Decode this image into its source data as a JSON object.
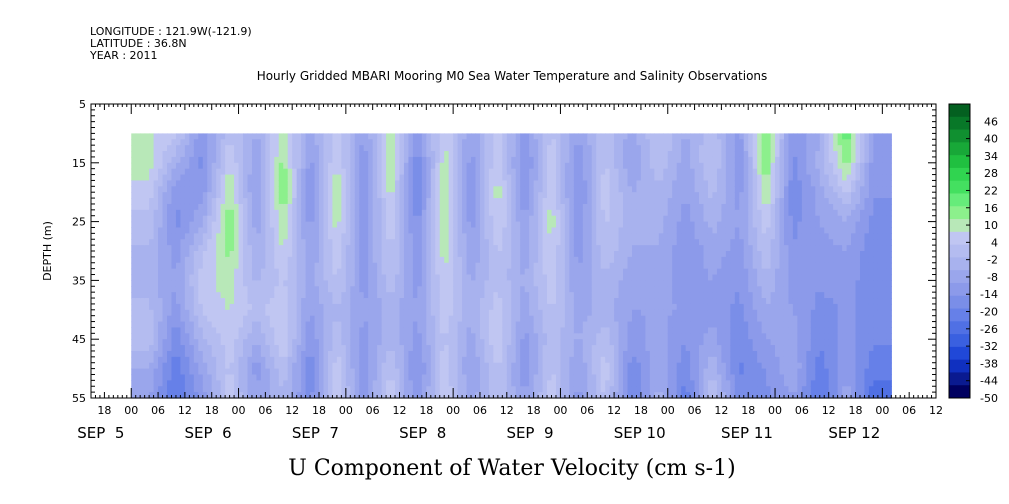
{
  "header": {
    "longitude": "LONGITUDE : 121.9W(-121.9)",
    "latitude": "LATITUDE : 36.8N",
    "year": "YEAR : 2011"
  },
  "chart_data": {
    "type": "heatmap",
    "title": "Hourly Gridded MBARI Mooring M0 Sea Water Temperature and Salinity Observations",
    "xlabel": "U Component of Water Velocity (cm s-1)",
    "ylabel": "DEPTH (m)",
    "ylim": [
      55,
      5
    ],
    "y_ticks": [
      5,
      15,
      25,
      35,
      45,
      55
    ],
    "data_depth_range": [
      10,
      55
    ],
    "x_tick_hour_labels": [
      "18",
      "00",
      "06",
      "12",
      "18",
      "00",
      "06",
      "12",
      "18",
      "00",
      "06",
      "12",
      "18",
      "00",
      "06",
      "12",
      "18",
      "00",
      "06",
      "12",
      "18",
      "00",
      "06",
      "12",
      "18",
      "00",
      "06",
      "12",
      "18",
      "00",
      "06",
      "12"
    ],
    "x_day_labels": [
      "SEP  5",
      "SEP  6",
      "SEP  7",
      "SEP  8",
      "SEP  9",
      "SEP 10",
      "SEP 11",
      "SEP 12"
    ],
    "colorbar": {
      "labels": [
        "46",
        "40",
        "34",
        "28",
        "22",
        "16",
        "10",
        "4",
        "-2",
        "-8",
        "-14",
        "-20",
        "-26",
        "-32",
        "-38",
        "-44",
        "-50"
      ],
      "min": -50,
      "max": 52,
      "step": 6,
      "colors": [
        "#000060",
        "#0a1a90",
        "#1030c0",
        "#2048d8",
        "#3a60e0",
        "#5070e4",
        "#6680e8",
        "#7a8ee8",
        "#8c9aea",
        "#9aa6ec",
        "#a8b2ee",
        "#b4bcf0",
        "#c0c6f2",
        "#b8e8b8",
        "#8cf08c",
        "#66ec7a",
        "#44e060",
        "#30d450",
        "#20c040",
        "#18a838",
        "#109030",
        "#087828",
        "#046020"
      ]
    },
    "field_columns": [
      {
        "x_hours": 4,
        "values": [
          8,
          10,
          6,
          2,
          -2,
          -4,
          0,
          2,
          -6,
          -10
        ]
      },
      {
        "x_hours": 10,
        "values": [
          4,
          -4,
          -14,
          -16,
          -12,
          -10,
          -12,
          -18,
          -22,
          -24
        ]
      },
      {
        "x_hours": 16,
        "values": [
          -14,
          -16,
          -12,
          -6,
          2,
          6,
          4,
          -2,
          -8,
          -12
        ]
      },
      {
        "x_hours": 22,
        "values": [
          2,
          8,
          12,
          16,
          14,
          10,
          8,
          6,
          4,
          6
        ]
      },
      {
        "x_hours": 28,
        "values": [
          -6,
          -10,
          -12,
          -8,
          -6,
          -2,
          2,
          -6,
          -12,
          -10
        ]
      },
      {
        "x_hours": 34,
        "values": [
          10,
          14,
          16,
          12,
          8,
          4,
          6,
          8,
          2,
          -2
        ]
      },
      {
        "x_hours": 40,
        "values": [
          -8,
          -12,
          -14,
          -12,
          -10,
          -8,
          -10,
          -14,
          -18,
          -16
        ]
      },
      {
        "x_hours": 46,
        "values": [
          6,
          8,
          12,
          10,
          6,
          4,
          -2,
          2,
          6,
          8
        ]
      },
      {
        "x_hours": 52,
        "values": [
          -10,
          -14,
          -16,
          -14,
          -12,
          -12,
          -10,
          -12,
          -14,
          -12
        ]
      },
      {
        "x_hours": 58,
        "values": [
          10,
          12,
          10,
          6,
          4,
          2,
          -4,
          -2,
          4,
          6
        ]
      },
      {
        "x_hours": 64,
        "values": [
          -12,
          -18,
          -20,
          -16,
          -14,
          -12,
          -10,
          -12,
          -16,
          -14
        ]
      },
      {
        "x_hours": 70,
        "values": [
          8,
          10,
          14,
          12,
          10,
          8,
          6,
          4,
          6,
          8
        ]
      },
      {
        "x_hours": 76,
        "values": [
          -10,
          -12,
          -14,
          -12,
          -10,
          -6,
          -4,
          -8,
          -10,
          -8
        ]
      },
      {
        "x_hours": 82,
        "values": [
          6,
          8,
          10,
          8,
          4,
          2,
          6,
          8,
          4,
          2
        ]
      },
      {
        "x_hours": 88,
        "values": [
          -12,
          -16,
          -14,
          -10,
          -8,
          -6,
          -8,
          -12,
          -14,
          -10
        ]
      },
      {
        "x_hours": 94,
        "values": [
          4,
          6,
          8,
          10,
          8,
          6,
          4,
          2,
          4,
          6
        ]
      },
      {
        "x_hours": 100,
        "values": [
          -10,
          -14,
          -16,
          -14,
          -12,
          -10,
          -8,
          -6,
          -10,
          -12
        ]
      },
      {
        "x_hours": 106,
        "values": [
          2,
          4,
          6,
          4,
          2,
          -2,
          -4,
          2,
          6,
          4
        ]
      },
      {
        "x_hours": 112,
        "values": [
          -8,
          -10,
          -6,
          -4,
          -6,
          -8,
          -10,
          -12,
          -18,
          -20
        ]
      },
      {
        "x_hours": 118,
        "values": [
          4,
          2,
          -2,
          -4,
          -6,
          -8,
          -10,
          -8,
          -6,
          -4
        ]
      },
      {
        "x_hours": 124,
        "values": [
          -6,
          -8,
          -10,
          -12,
          -14,
          -12,
          -10,
          -14,
          -18,
          -22
        ]
      },
      {
        "x_hours": 130,
        "values": [
          2,
          4,
          0,
          -4,
          -8,
          -10,
          -12,
          -8,
          -2,
          4
        ]
      },
      {
        "x_hours": 136,
        "values": [
          -12,
          -14,
          -12,
          -10,
          -12,
          -14,
          -16,
          -18,
          -20,
          -16
        ]
      },
      {
        "x_hours": 142,
        "values": [
          18,
          16,
          12,
          6,
          2,
          -2,
          -6,
          -10,
          -14,
          -16
        ]
      },
      {
        "x_hours": 148,
        "values": [
          -14,
          -16,
          -18,
          -16,
          -14,
          -12,
          -10,
          -8,
          -6,
          -10
        ]
      },
      {
        "x_hours": 154,
        "values": [
          -6,
          -4,
          -8,
          -10,
          -12,
          -14,
          -16,
          -18,
          -22,
          -24
        ]
      },
      {
        "x_hours": 160,
        "values": [
          20,
          14,
          4,
          -6,
          -10,
          -12,
          -14,
          -12,
          -10,
          -8
        ]
      },
      {
        "x_hours": 166,
        "values": [
          -10,
          -12,
          -14,
          -16,
          -18,
          -18,
          -16,
          -18,
          -22,
          -26
        ]
      }
    ]
  }
}
